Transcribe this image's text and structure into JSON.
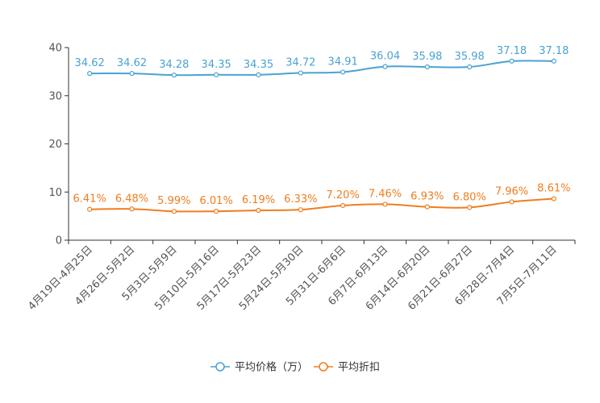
{
  "chart_data": {
    "type": "line",
    "title": "",
    "xlabel": "",
    "ylabel": "",
    "ylim": [
      0,
      40
    ],
    "yticks": [
      0,
      10,
      20,
      30,
      40
    ],
    "grid": false,
    "legend_position": "bottom-center",
    "categories": [
      "4月19日-4月25日",
      "4月26日-5月2日",
      "5月3日-5月9日",
      "5月10日-5月16日",
      "5月17日-5月23日",
      "5月24日-5月30日",
      "5月31日-6月6日",
      "6月7日-6月13日",
      "6月14日-6月20日",
      "6月21日-6月27日",
      "6月28日-7月4日",
      "7月5日-7月11日"
    ],
    "series": [
      {
        "name": "平均价格（万）",
        "color": "#4aa3d1",
        "values": [
          34.62,
          34.62,
          34.28,
          34.35,
          34.35,
          34.72,
          34.91,
          36.04,
          35.98,
          35.98,
          37.18,
          37.18
        ],
        "labels": [
          "34.62",
          "34.62",
          "34.28",
          "34.35",
          "34.35",
          "34.72",
          "34.91",
          "36.04",
          "35.98",
          "35.98",
          "37.18",
          "37.18"
        ]
      },
      {
        "name": "平均折扣",
        "color": "#f07d1f",
        "values": [
          6.41,
          6.48,
          5.99,
          6.01,
          6.19,
          6.33,
          7.2,
          7.46,
          6.93,
          6.8,
          7.96,
          8.61
        ],
        "labels": [
          "6.41%",
          "6.48%",
          "5.99%",
          "6.01%",
          "6.19%",
          "6.33%",
          "7.20%",
          "7.46%",
          "6.93%",
          "6.80%",
          "7.96%",
          "8.61%"
        ]
      }
    ]
  }
}
